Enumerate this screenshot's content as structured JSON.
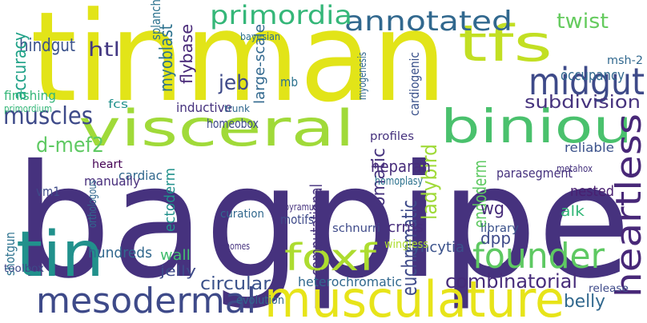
{
  "words": [
    "bagpipe",
    "tinman",
    "visceral",
    "musculature",
    "biniou",
    "tfs",
    "midgut",
    "annotated",
    "primordia",
    "tin",
    "mesodermal",
    "foxf",
    "founder",
    "heartless",
    "muscles",
    "hindgut",
    "htl",
    "combinatorial",
    "circular",
    "belly",
    "subdivision",
    "euchromatic",
    "ladybird",
    "d-mef2",
    "accuracy",
    "myoblast",
    "flybase",
    "jeb",
    "large-scale",
    "twist",
    "ectoderm",
    "somatic",
    "endoderm",
    "heparan",
    "homeobox",
    "inductive",
    "cardiac",
    "heart",
    "wg",
    "dpp",
    "alk",
    "crms",
    "wall",
    "jelly",
    "hundreds",
    "syncytia",
    "heterochromatic",
    "computational",
    "manually",
    "vm1",
    "reliable",
    "nested",
    "occupancy",
    "msh-2",
    "parasegment",
    "shotgun",
    "library",
    "evolution",
    "cardiogenic",
    "myogenesis",
    "fcs",
    "finishing",
    "primordium",
    "toolbox",
    "profiles",
    "schnurri",
    "orthologous",
    "curation",
    "genomes",
    "wingless",
    "pyramus",
    "motifs",
    "release",
    "metahox",
    "homoplasy",
    "mb",
    "trunk",
    "splanchnic",
    "bayesian"
  ]
}
